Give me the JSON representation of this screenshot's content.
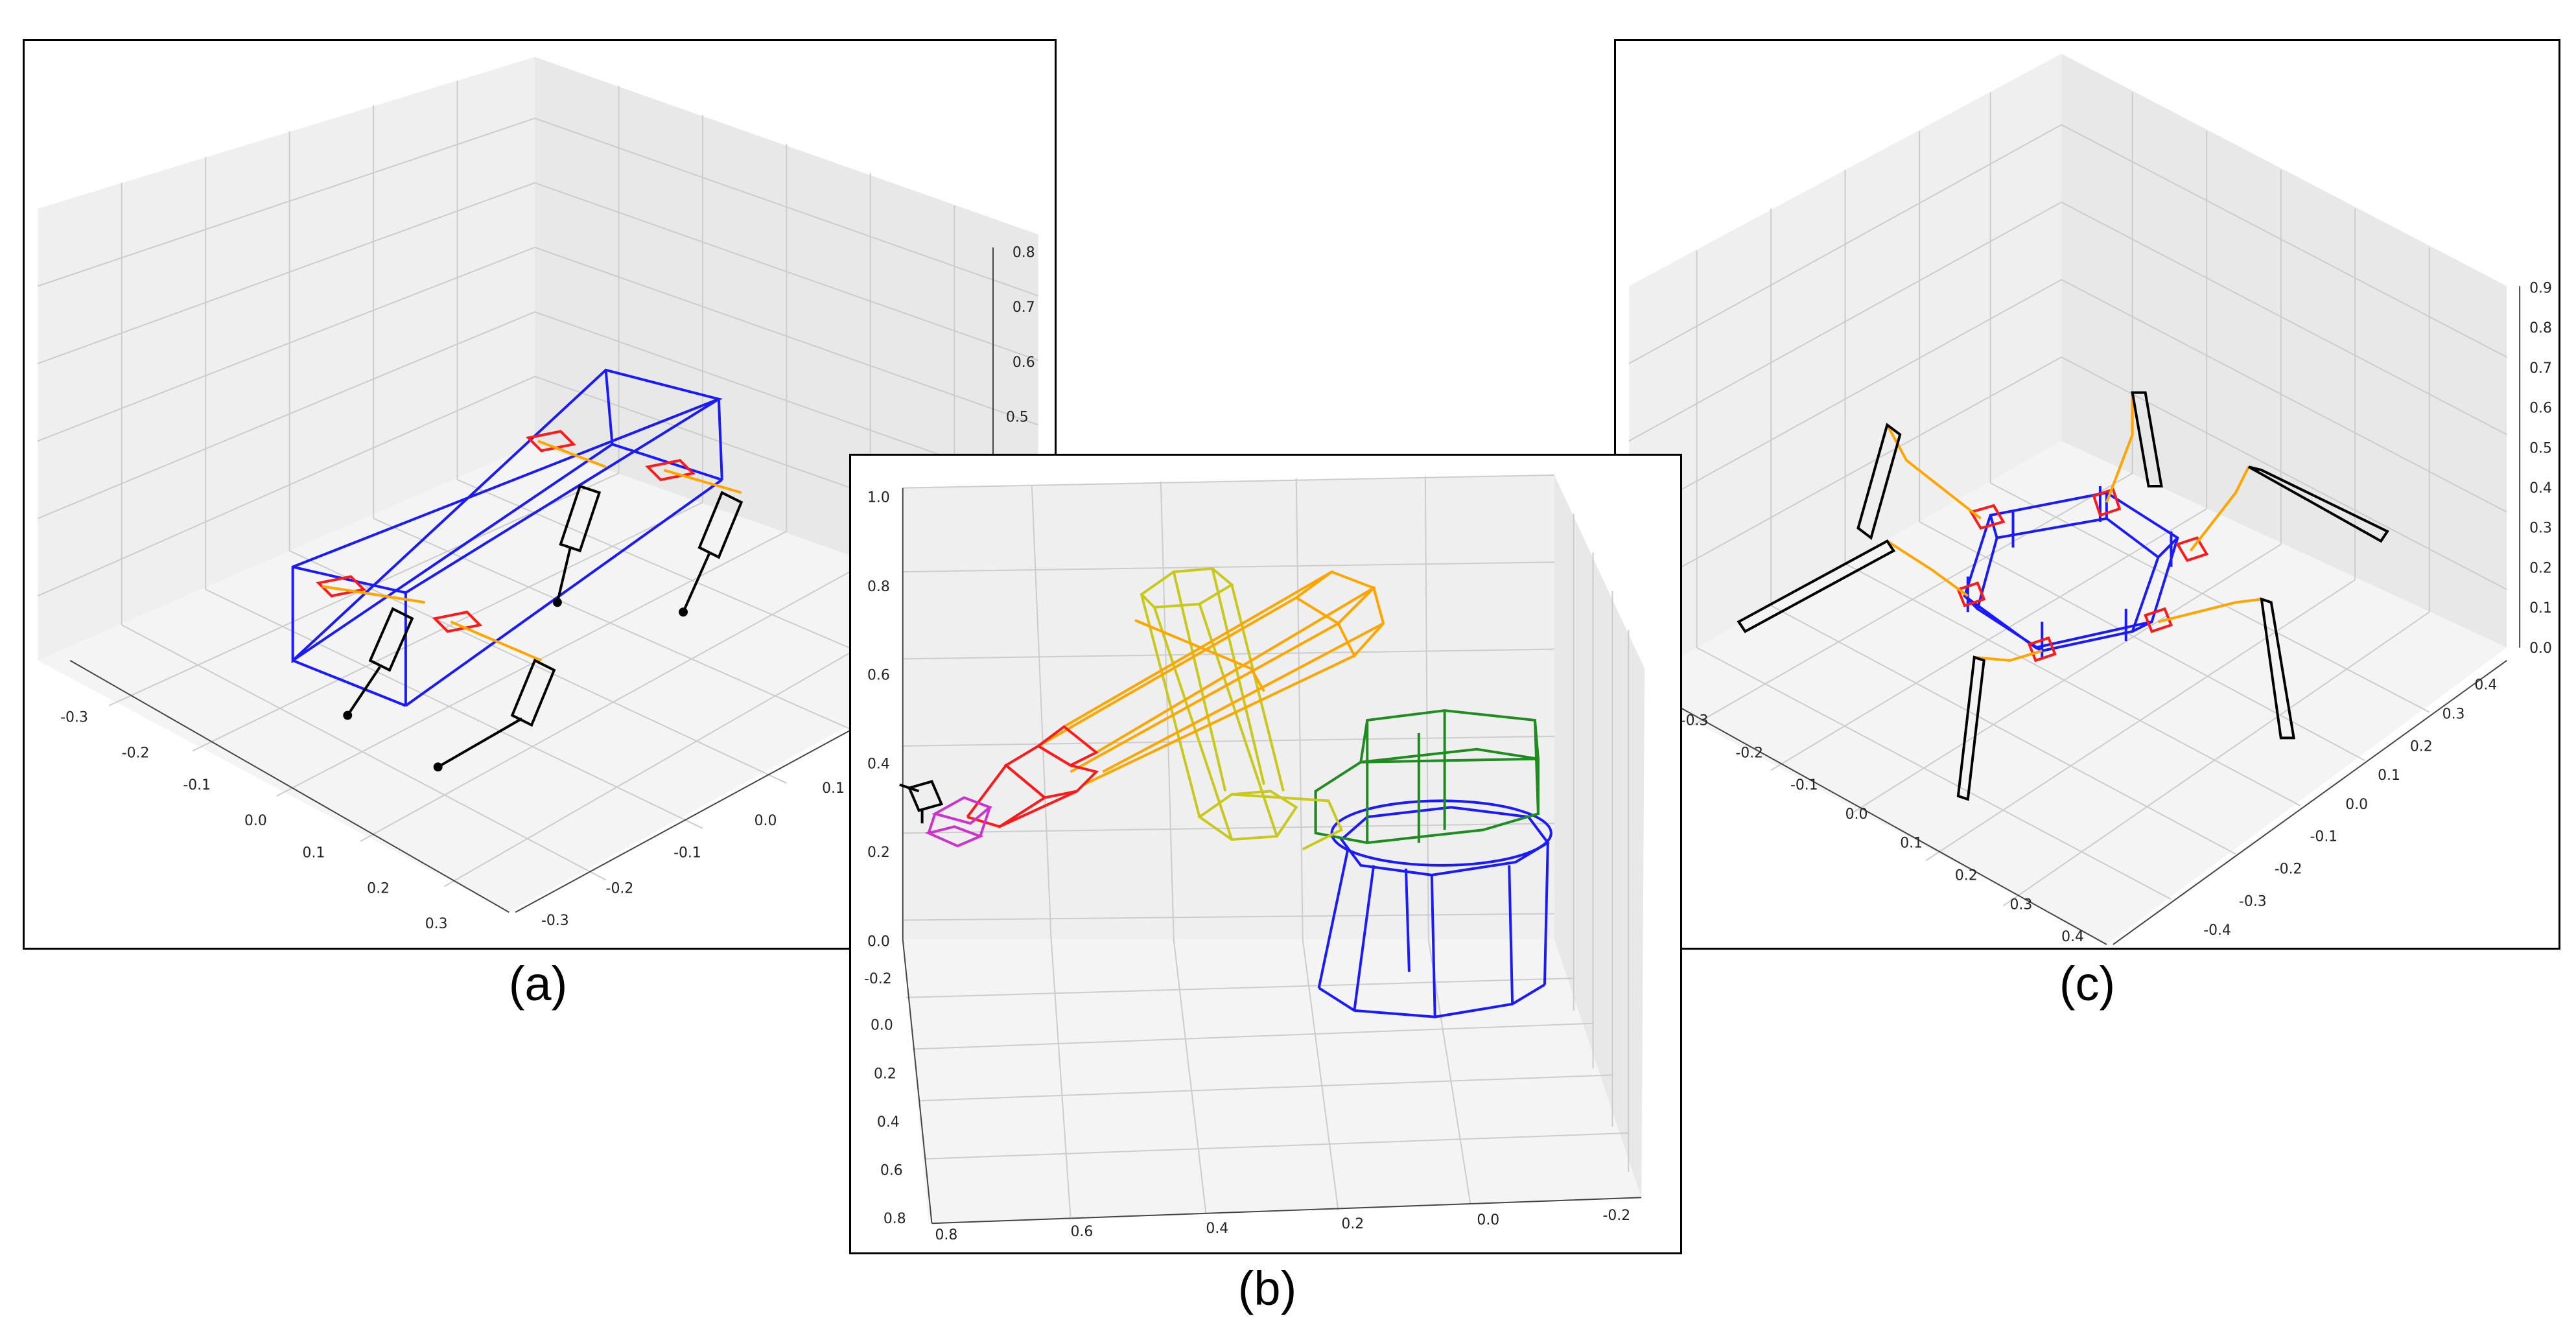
{
  "captions": {
    "a": "(a)",
    "b": "(b)",
    "c": "(c)"
  },
  "panel_a": {
    "z_ticks": [
      "0.8",
      "0.7",
      "0.6",
      "0.5"
    ],
    "x_ticks": [
      "-0.3",
      "-0.2",
      "-0.1",
      "0.0",
      "0.1",
      "0.2",
      "0.3"
    ],
    "y_ticks": [
      "-0.3",
      "-0.2",
      "-0.1",
      "0.0",
      "0.1"
    ]
  },
  "panel_b": {
    "z_ticks": [
      "1.0",
      "0.8",
      "0.6",
      "0.4",
      "0.2",
      "0.0"
    ],
    "y_ticks": [
      "-0.2",
      "0.0",
      "0.2",
      "0.4",
      "0.6",
      "0.8"
    ],
    "x_ticks": [
      "0.8",
      "0.6",
      "0.4",
      "0.2",
      "0.0",
      "-0.2"
    ]
  },
  "panel_c": {
    "z_ticks": [
      "0.9",
      "0.8",
      "0.7",
      "0.6",
      "0.5",
      "0.4",
      "0.3",
      "0.2",
      "0.1",
      "0.0"
    ],
    "x_ticks": [
      "-0.3",
      "-0.2",
      "-0.1",
      "0.0",
      "0.1",
      "0.2",
      "0.3",
      "0.4"
    ],
    "y_ticks": [
      "0.4",
      "0.3",
      "0.2",
      "0.1",
      "0.0",
      "-0.1",
      "-0.2",
      "-0.3",
      "-0.4"
    ]
  },
  "colors": {
    "body": "#1a1aff",
    "joint": "#ff1a1a",
    "link": "#ffa500",
    "leg": "#000000",
    "yellow": "#c8c81e",
    "green": "#1e8c1e",
    "magenta": "#cc33cc",
    "grid": "#cccccc",
    "pane": "#f2f2f2"
  }
}
